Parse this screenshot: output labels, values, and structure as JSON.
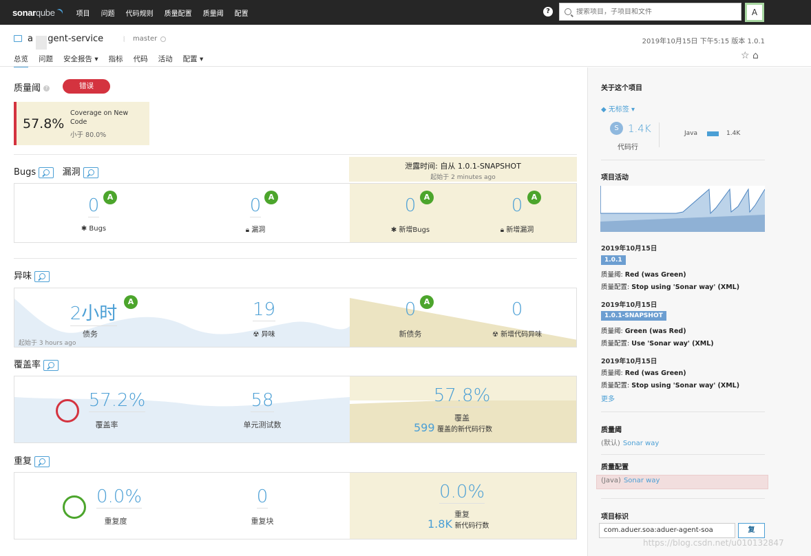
{
  "topbar": {
    "logo_main": "sonar",
    "logo_sub": "qube",
    "nav": [
      "项目",
      "问题",
      "代码规则",
      "质量配置",
      "质量阈",
      "配置"
    ],
    "search_placeholder": "搜索项目，子项目和文件",
    "avatar": "A"
  },
  "header": {
    "project_name": "a    r-agent-service",
    "branch": "master",
    "meta": "2019年10月15日 下午5:15  版本 1.0.1",
    "tabs": [
      "总览",
      "问题",
      "安全报告 ▾",
      "指标",
      "代码",
      "活动",
      "配置 ▾"
    ]
  },
  "quality_gate": {
    "title": "质量阈",
    "status": "错误",
    "condition": {
      "value": "57.8%",
      "metric": "Coverage on New Code",
      "threshold": "小于 80.0%"
    }
  },
  "leak": {
    "title": "泄露时间: 自从 1.0.1-SNAPSHOT",
    "since": "起始于 2 minutes ago"
  },
  "bugs_section": {
    "title_bugs": "Bugs",
    "title_vuln": "漏洞",
    "bugs": {
      "value": "0",
      "rating": "A",
      "label": "Bugs",
      "icon": "bug-icon"
    },
    "vulnerabilities": {
      "value": "0",
      "rating": "A",
      "label": "漏洞",
      "icon": "lock-icon"
    },
    "new_bugs": {
      "value": "0",
      "rating": "A",
      "label": "新增Bugs"
    },
    "new_vulnerabilities": {
      "value": "0",
      "rating": "A",
      "label": "新增漏洞"
    }
  },
  "smells_section": {
    "title": "异味",
    "debt": {
      "value": "2小时",
      "rating": "A",
      "label": "债务"
    },
    "smells": {
      "value": "19",
      "label": "异味"
    },
    "new_debt": {
      "value": "0",
      "rating": "A",
      "label": "新债务"
    },
    "new_smells": {
      "value": "0",
      "label": "新增代码异味"
    },
    "since": "起始于 3 hours ago"
  },
  "coverage_section": {
    "title": "覆盖率",
    "coverage": {
      "value": "57.2%",
      "label": "覆盖率"
    },
    "tests": {
      "value": "58",
      "label": "单元测试数"
    },
    "new_coverage": {
      "value": "57.8%",
      "label": "覆盖"
    },
    "new_lines": {
      "value": "599",
      "label": "覆盖的新代码行数"
    }
  },
  "dup_section": {
    "title": "重复",
    "duplication": {
      "value": "0.0%",
      "label": "重复度"
    },
    "blocks": {
      "value": "0",
      "label": "重复块"
    },
    "new_duplication": {
      "value": "0.0%",
      "label": "重复"
    },
    "new_lines": {
      "value": "1.8K",
      "label": "新代码行数"
    }
  },
  "sidebar": {
    "about_title": "关于这个项目",
    "tags": "无标签 ▾",
    "loc": {
      "icon": "S",
      "value": "1.4K",
      "label": "代码行"
    },
    "language": {
      "name": "Java",
      "value": "1.4K"
    },
    "activity_title": "项目活动",
    "events": [
      {
        "date": "2019年10月15日",
        "version": "1.0.1",
        "gate": "Red (was Green)",
        "profile": "Stop using 'Sonar way' (XML)"
      },
      {
        "date": "2019年10月15日",
        "version": "1.0.1-SNAPSHOT",
        "gate": "Green (was Red)",
        "profile": "Use 'Sonar way' (XML)"
      },
      {
        "date": "2019年10月15日",
        "version": "",
        "gate": "Red (was Green)",
        "profile": "Stop using 'Sonar way' (XML)"
      }
    ],
    "gate_prefix": "质量阈: ",
    "profile_prefix": "质量配置: ",
    "more": "更多",
    "qg_title": "质量阈",
    "qg_default": "(默认)",
    "qg_name": "Sonar way",
    "qp_title": "质量配置",
    "qp_lang": "(Java)",
    "qp_name": "Sonar way",
    "key_title": "项目标识",
    "key_value": "com.aduer.soa:aduer-agent-soa",
    "copy": "复",
    "watermark": "https://blog.csdn.net/u010132847"
  }
}
